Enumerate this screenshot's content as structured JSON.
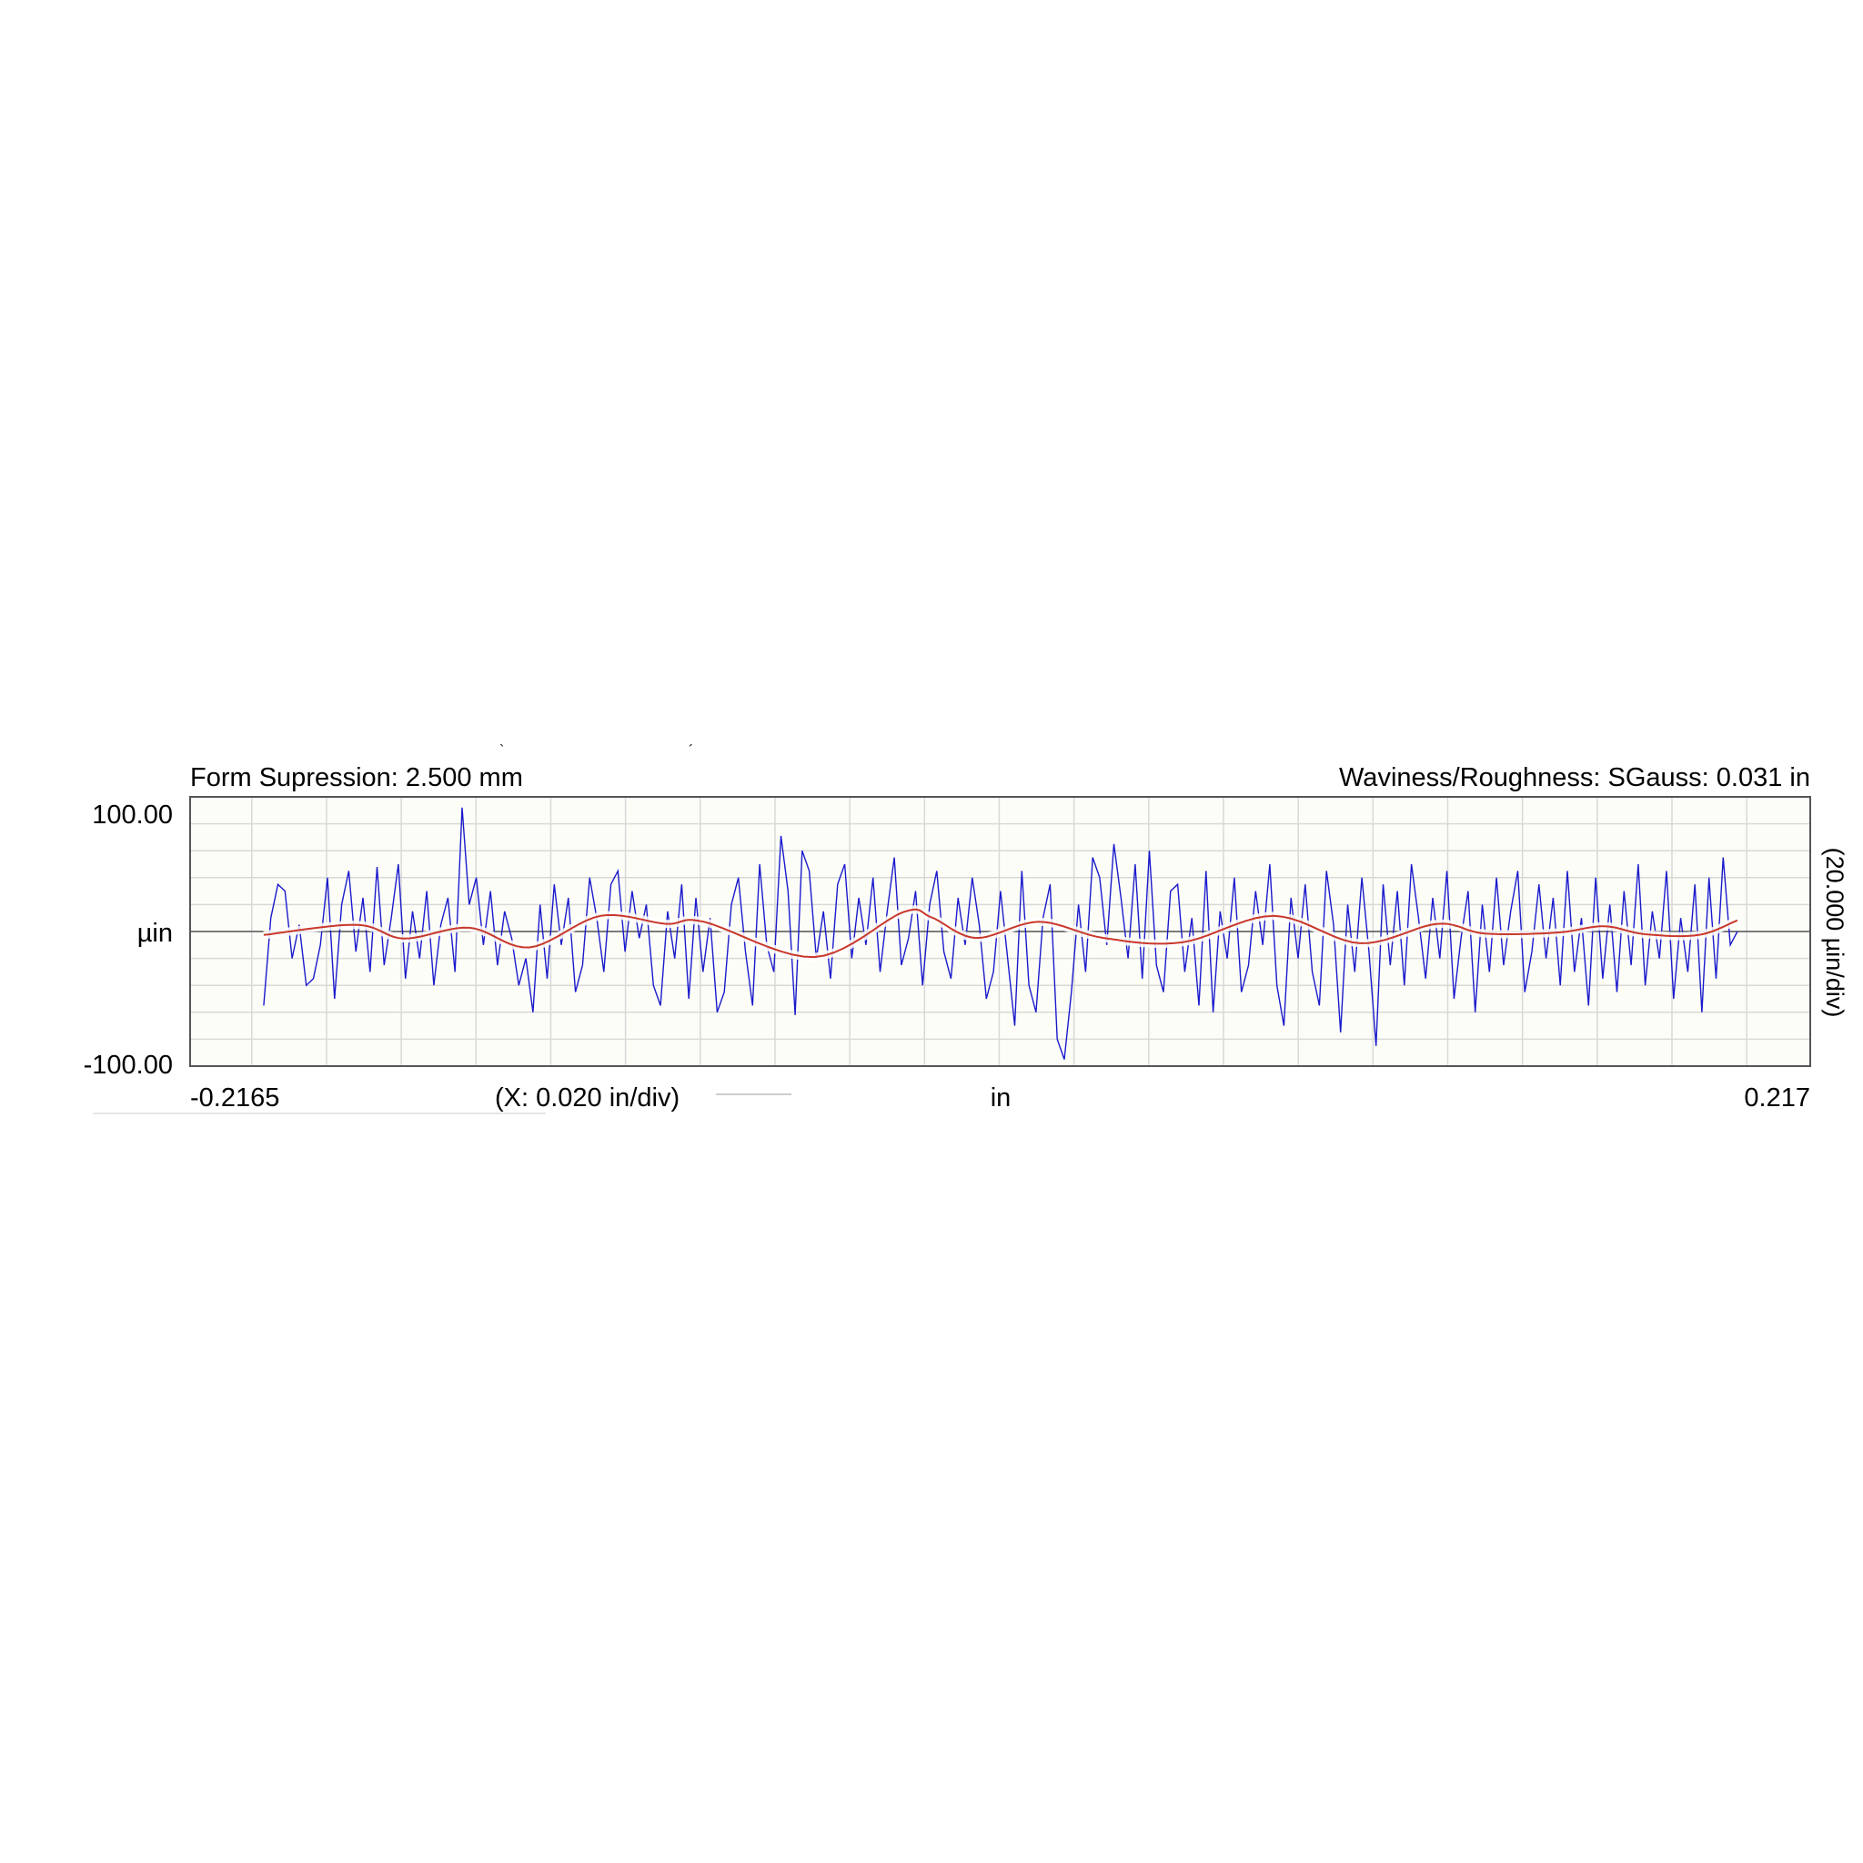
{
  "header": {
    "left": "Form Supression: 2.500 mm",
    "right": "Waviness/Roughness: SGauss: 0.031 in"
  },
  "chart_data": {
    "type": "line",
    "xlim": [
      -0.2165,
      0.217
    ],
    "ylim": [
      -100,
      100
    ],
    "x_tick_labels": [
      "-0.2165",
      "0.217"
    ],
    "y_tick_labels": [
      "100.00",
      "µin",
      "-100.00"
    ],
    "xlabel": "in",
    "x_scale_label": "(X: 0.020 in/div)",
    "y_scale_label": "(20.000 µin/div)",
    "x_grid_step": 0.02,
    "y_grid_step": 20,
    "grid": true,
    "colors": {
      "background": "#fdfdf8",
      "grid": "#d8d8d8",
      "profile": "#1a1acc",
      "waviness": "#c8382a",
      "zero_line": "#555555"
    },
    "series": [
      {
        "kind": "roughness-profile",
        "x_range": [
          -0.1968,
          0.1975
        ],
        "y": [
          -55,
          10,
          35,
          30,
          -20,
          5,
          -40,
          -35,
          -10,
          40,
          -50,
          20,
          45,
          -15,
          25,
          -30,
          48,
          -25,
          10,
          50,
          -35,
          15,
          -20,
          30,
          -40,
          5,
          25,
          -30,
          92,
          20,
          40,
          -10,
          30,
          -25,
          15,
          -5,
          -40,
          -20,
          -60,
          20,
          -35,
          35,
          -10,
          25,
          -45,
          -25,
          40,
          10,
          -30,
          35,
          45,
          -15,
          30,
          -5,
          20,
          -40,
          -55,
          15,
          -20,
          35,
          -50,
          25,
          -30,
          10,
          -60,
          -45,
          20,
          40,
          -15,
          -55,
          50,
          -10,
          -30,
          71,
          30,
          -62,
          60,
          45,
          -20,
          15,
          -35,
          35,
          50,
          -20,
          25,
          -10,
          40,
          -30,
          15,
          55,
          -25,
          -5,
          30,
          -40,
          20,
          45,
          -15,
          -35,
          25,
          -10,
          40,
          5,
          -50,
          -30,
          30,
          -20,
          -70,
          45,
          -40,
          -60,
          10,
          35,
          -80,
          -95,
          -45,
          20,
          -30,
          55,
          40,
          -10,
          65,
          25,
          -20,
          50,
          -35,
          60,
          -25,
          -45,
          30,
          35,
          -30,
          10,
          -55,
          45,
          -60,
          15,
          -20,
          40,
          -45,
          -25,
          30,
          -10,
          50,
          -40,
          -70,
          25,
          -20,
          35,
          -30,
          -55,
          45,
          5,
          -75,
          20,
          -30,
          40,
          -15,
          -85,
          35,
          -25,
          30,
          -40,
          50,
          10,
          -35,
          25,
          -20,
          45,
          -50,
          -5,
          30,
          -60,
          20,
          -30,
          40,
          -25,
          15,
          45,
          -45,
          -15,
          35,
          -20,
          25,
          -40,
          45,
          -30,
          10,
          -55,
          40,
          -35,
          20,
          -45,
          30,
          -25,
          50,
          -40,
          15,
          -20,
          45,
          -50,
          10,
          -30,
          35,
          -60,
          40,
          -35,
          55,
          -10,
          0
        ]
      },
      {
        "kind": "waviness",
        "x": [
          -0.1968,
          -0.172,
          -0.1593,
          -0.1418,
          -0.1257,
          -0.1067,
          -0.0892,
          -0.079,
          -0.0495,
          -0.0257,
          -0.0181,
          -0.0062,
          0.0106,
          0.0279,
          0.0488,
          0.0734,
          0.0965,
          0.1172,
          0.1299,
          0.1489,
          0.1618,
          0.1727,
          0.1871,
          0.1975
        ],
        "y": [
          -2.6,
          5,
          -5.2,
          2.8,
          -11.8,
          11.6,
          5.7,
          7.2,
          -19,
          14.4,
          10.5,
          -4.8,
          7.2,
          -4.8,
          -8.1,
          11.6,
          -8.7,
          5.7,
          -1.5,
          -0.9,
          3.9,
          -2,
          -2.6,
          8.3
        ]
      }
    ]
  }
}
